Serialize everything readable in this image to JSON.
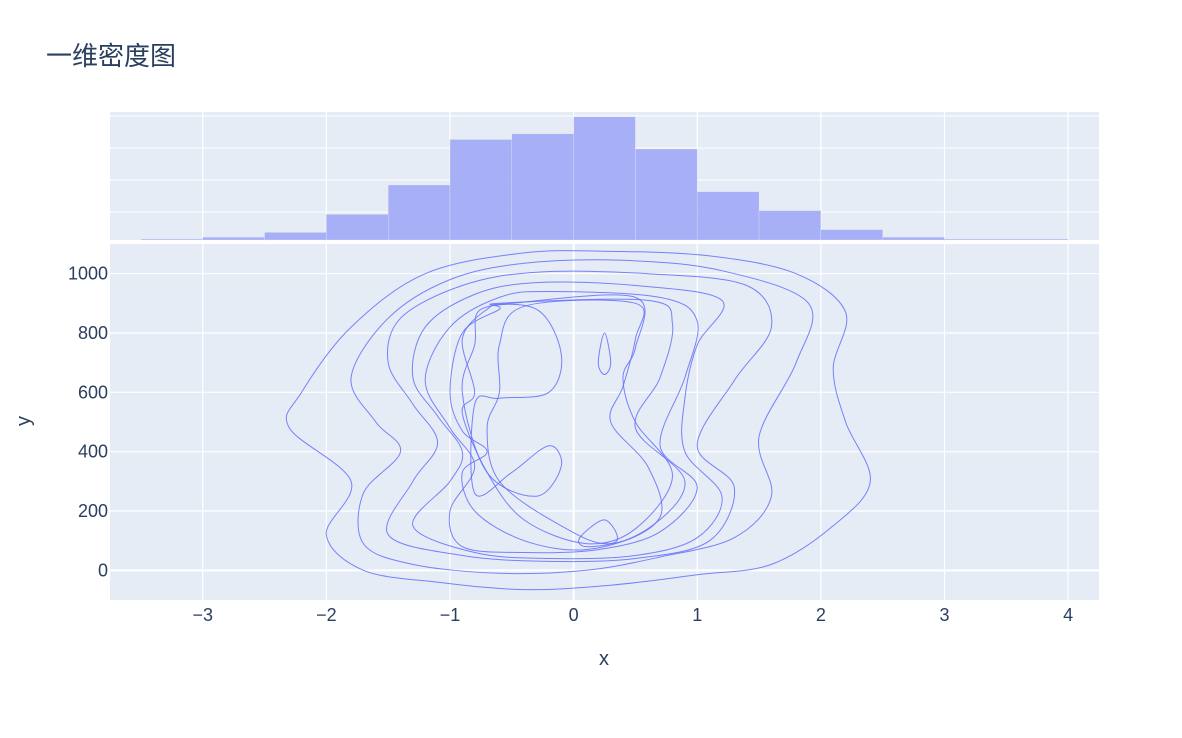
{
  "title": "一维密度图",
  "chart_data": [
    {
      "type": "bar",
      "panel": "marginal-top",
      "bin_width": 0.5,
      "bins": [
        {
          "x0": -3.5,
          "x1": -3.0,
          "count": 1
        },
        {
          "x0": -3.0,
          "x1": -2.5,
          "count": 3
        },
        {
          "x0": -2.5,
          "x1": -2.0,
          "count": 8
        },
        {
          "x0": -2.0,
          "x1": -1.5,
          "count": 27
        },
        {
          "x0": -1.5,
          "x1": -1.0,
          "count": 58
        },
        {
          "x0": -1.0,
          "x1": -0.5,
          "count": 106
        },
        {
          "x0": -0.5,
          "x1": 0.0,
          "count": 112
        },
        {
          "x0": 0.0,
          "x1": 0.5,
          "count": 130
        },
        {
          "x0": 0.5,
          "x1": 1.0,
          "count": 96
        },
        {
          "x0": 1.0,
          "x1": 1.5,
          "count": 51
        },
        {
          "x0": 1.5,
          "x1": 2.0,
          "count": 31
        },
        {
          "x0": 2.0,
          "x1": 2.5,
          "count": 11
        },
        {
          "x0": 2.5,
          "x1": 3.0,
          "count": 3
        },
        {
          "x0": 3.0,
          "x1": 4.0,
          "count": 1
        }
      ],
      "color": "#a3acf7",
      "ylim": [
        0,
        135
      ]
    },
    {
      "type": "contour",
      "panel": "main",
      "xlabel": "x",
      "ylabel": "y",
      "xlim": [
        -3.75,
        4.25
      ],
      "ylim": [
        -100,
        1100
      ],
      "xticks": [
        -3,
        -2,
        -1,
        0,
        1,
        2,
        3,
        4
      ],
      "xtick_labels": [
        "−3",
        "−2",
        "−1",
        "0",
        "1",
        "2",
        "3",
        "4"
      ],
      "yticks": [
        0,
        200,
        400,
        600,
        800,
        1000
      ],
      "ytick_labels": [
        "0",
        "200",
        "400",
        "600",
        "800",
        "1000"
      ],
      "line_color": "#636efa",
      "grid": true,
      "levels": [
        [
          [
            -0.4,
            1070
          ],
          [
            0.3,
            1075
          ],
          [
            1.1,
            1060
          ],
          [
            1.8,
            1000
          ],
          [
            2.2,
            870
          ],
          [
            2.1,
            680
          ],
          [
            2.2,
            500
          ],
          [
            2.4,
            300
          ],
          [
            2.1,
            150
          ],
          [
            1.6,
            20
          ],
          [
            1.0,
            -15
          ],
          [
            0.3,
            -50
          ],
          [
            -0.4,
            -65
          ],
          [
            -1.1,
            -40
          ],
          [
            -1.7,
            0
          ],
          [
            -2.0,
            120
          ],
          [
            -1.8,
            300
          ],
          [
            -2.3,
            480
          ],
          [
            -2.2,
            600
          ],
          [
            -1.8,
            820
          ],
          [
            -1.2,
            1000
          ]
        ],
        [
          [
            -0.4,
            1035
          ],
          [
            0.4,
            1045
          ],
          [
            1.2,
            1010
          ],
          [
            1.9,
            900
          ],
          [
            1.8,
            700
          ],
          [
            1.5,
            450
          ],
          [
            1.6,
            250
          ],
          [
            1.3,
            110
          ],
          [
            0.7,
            45
          ],
          [
            0.1,
            0
          ],
          [
            -0.6,
            -10
          ],
          [
            -1.3,
            20
          ],
          [
            -1.7,
            90
          ],
          [
            -1.7,
            260
          ],
          [
            -1.4,
            400
          ],
          [
            -1.6,
            500
          ],
          [
            -1.8,
            650
          ],
          [
            -1.5,
            850
          ],
          [
            -1.0,
            980
          ]
        ],
        [
          [
            -0.3,
            1005
          ],
          [
            0.6,
            1000
          ],
          [
            1.4,
            960
          ],
          [
            1.6,
            820
          ],
          [
            1.3,
            640
          ],
          [
            1.0,
            420
          ],
          [
            1.3,
            280
          ],
          [
            1.1,
            100
          ],
          [
            0.5,
            40
          ],
          [
            -0.2,
            30
          ],
          [
            -0.9,
            50
          ],
          [
            -1.5,
            120
          ],
          [
            -1.3,
            300
          ],
          [
            -1.1,
            430
          ],
          [
            -1.3,
            560
          ],
          [
            -1.5,
            700
          ],
          [
            -1.4,
            850
          ],
          [
            -0.9,
            960
          ]
        ],
        [
          [
            -0.3,
            970
          ],
          [
            0.5,
            960
          ],
          [
            1.2,
            910
          ],
          [
            1.0,
            760
          ],
          [
            0.9,
            580
          ],
          [
            0.9,
            400
          ],
          [
            1.2,
            250
          ],
          [
            1.0,
            110
          ],
          [
            0.5,
            50
          ],
          [
            -0.2,
            40
          ],
          [
            -0.8,
            60
          ],
          [
            -1.3,
            150
          ],
          [
            -1.0,
            300
          ],
          [
            -0.9,
            400
          ],
          [
            -1.1,
            520
          ],
          [
            -1.3,
            650
          ],
          [
            -1.2,
            820
          ],
          [
            -0.8,
            930
          ]
        ],
        [
          [
            -0.2,
            940
          ],
          [
            0.7,
            920
          ],
          [
            1.0,
            840
          ],
          [
            0.9,
            650
          ],
          [
            0.7,
            420
          ],
          [
            1.0,
            280
          ],
          [
            0.7,
            130
          ],
          [
            0.2,
            70
          ],
          [
            -0.4,
            60
          ],
          [
            -0.9,
            80
          ],
          [
            -1.0,
            200
          ],
          [
            -0.8,
            350
          ],
          [
            -1.0,
            480
          ],
          [
            -1.2,
            640
          ],
          [
            -1.0,
            820
          ],
          [
            -0.6,
            920
          ]
        ],
        [
          [
            -0.6,
            900
          ],
          [
            0.6,
            910
          ],
          [
            0.8,
            830
          ],
          [
            0.7,
            650
          ],
          [
            0.5,
            480
          ],
          [
            0.9,
            300
          ],
          [
            0.6,
            140
          ],
          [
            0.1,
            70
          ],
          [
            -0.4,
            100
          ],
          [
            -0.8,
            200
          ],
          [
            -0.9,
            330
          ],
          [
            -0.7,
            400
          ],
          [
            -0.9,
            470
          ],
          [
            -1.0,
            600
          ],
          [
            -0.9,
            800
          ],
          [
            -0.6,
            880
          ]
        ],
        [
          [
            -0.5,
            900
          ],
          [
            0.5,
            920
          ],
          [
            0.5,
            750
          ],
          [
            0.4,
            650
          ],
          [
            0.5,
            500
          ],
          [
            0.8,
            320
          ],
          [
            0.5,
            140
          ],
          [
            0.1,
            90
          ],
          [
            -0.4,
            170
          ],
          [
            -0.7,
            330
          ],
          [
            -0.9,
            530
          ],
          [
            -0.8,
            600
          ],
          [
            -0.9,
            780
          ],
          [
            -0.7,
            880
          ]
        ],
        [
          [
            -0.4,
            890
          ],
          [
            0.5,
            900
          ],
          [
            0.5,
            780
          ],
          [
            0.4,
            620
          ],
          [
            0.3,
            500
          ],
          [
            0.6,
            350
          ],
          [
            0.7,
            180
          ],
          [
            0.3,
            90
          ],
          [
            -0.1,
            150
          ],
          [
            -0.6,
            300
          ],
          [
            -0.7,
            480
          ],
          [
            -0.6,
            600
          ],
          [
            -0.6,
            760
          ]
        ]
      ],
      "inner_regions": [
        {
          "name": "left-pocket",
          "points": [
            [
              -0.75,
              880
            ],
            [
              -0.3,
              880
            ],
            [
              -0.1,
              730
            ],
            [
              -0.2,
              600
            ],
            [
              -0.6,
              580
            ],
            [
              -0.8,
              560
            ],
            [
              -0.8,
              260
            ],
            [
              -0.5,
              330
            ],
            [
              -0.2,
              420
            ],
            [
              -0.1,
              350
            ],
            [
              -0.3,
              250
            ],
            [
              -0.7,
              330
            ],
            [
              -0.9,
              600
            ],
            [
              -0.8,
              760
            ]
          ]
        },
        {
          "name": "small-ellipse",
          "points": [
            [
              0.25,
              800
            ],
            [
              0.3,
              700
            ],
            [
              0.25,
              660
            ],
            [
              0.2,
              700
            ]
          ]
        },
        {
          "name": "bottom-peak",
          "points": [
            [
              0.25,
              170
            ],
            [
              0.35,
              100
            ],
            [
              0.1,
              80
            ],
            [
              0.05,
              110
            ]
          ]
        }
      ]
    }
  ]
}
